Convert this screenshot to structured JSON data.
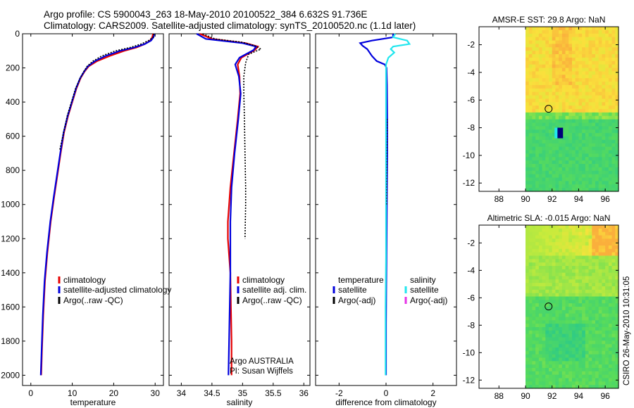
{
  "header": {
    "line1": "Argo profile: CS 5900043_263 18-May-2010 20100522_384 6.632S 91.736E",
    "line2": "Climatology: CARS2009. Satellite-adjusted climatology: synTS_20100520.nc (1.1d later)"
  },
  "colors": {
    "climatology": "#e60000",
    "satellite": "#0000dd",
    "argo": "#000000",
    "sat_salinity": "#22e6ee",
    "argo_adj_salinity": "#e633e6"
  },
  "chart_data": [
    {
      "type": "line",
      "id": "temperature",
      "xlabel": "temperature",
      "ylabel": "",
      "xlim": [
        -2,
        32
      ],
      "ylim": [
        2060,
        0
      ],
      "y_reversed": true,
      "xticks": [
        0,
        10,
        20,
        30
      ],
      "yticks": [
        0,
        200,
        400,
        600,
        800,
        1000,
        1200,
        1400,
        1600,
        1800,
        2000
      ],
      "legend": {
        "position": "lower-right",
        "entries": [
          "climatology",
          "satellite-adjusted climatology",
          "Argo(..raw -QC)"
        ]
      },
      "series": [
        {
          "name": "climatology",
          "color": "#e60000",
          "dash": "",
          "x": [
            29.5,
            29.3,
            28.8,
            27.5,
            25.5,
            22.5,
            19.0,
            16.0,
            14.0,
            13.0,
            12.0,
            11.0,
            10.0,
            9.0,
            8.0,
            7.2,
            6.4,
            5.6,
            4.8,
            4.0,
            3.4,
            3.0,
            2.7,
            2.5
          ],
          "y": [
            0,
            20,
            40,
            60,
            80,
            100,
            130,
            160,
            190,
            220,
            260,
            320,
            400,
            480,
            580,
            700,
            830,
            960,
            1100,
            1280,
            1450,
            1650,
            1850,
            2000
          ]
        },
        {
          "name": "satellite-adjusted climatology",
          "color": "#0000dd",
          "dash": "",
          "x": [
            29.8,
            29.6,
            29.0,
            27.5,
            25.0,
            21.5,
            18.0,
            15.5,
            13.8,
            12.9,
            11.9,
            10.9,
            9.9,
            8.9,
            7.9,
            7.1,
            6.3,
            5.5,
            4.7,
            3.9,
            3.3,
            2.9,
            2.6,
            2.4
          ],
          "y": [
            0,
            20,
            40,
            60,
            80,
            100,
            130,
            160,
            190,
            220,
            260,
            320,
            400,
            480,
            580,
            700,
            830,
            960,
            1100,
            1280,
            1450,
            1650,
            1850,
            2000
          ]
        },
        {
          "name": "Argo(..raw -QC)",
          "color": "#000000",
          "dash": "2,2",
          "x": [
            29.7,
            29.5,
            28.4,
            26.6,
            24.0,
            20.4,
            17.1,
            15.0,
            13.6,
            12.8,
            11.9,
            10.8,
            9.8,
            8.8,
            7.9,
            7.0
          ],
          "y": [
            0,
            20,
            40,
            60,
            80,
            100,
            130,
            160,
            190,
            220,
            260,
            320,
            400,
            480,
            580,
            680
          ]
        }
      ]
    },
    {
      "type": "line",
      "id": "salinity",
      "xlabel": "salinity",
      "xlim": [
        33.8,
        36.1
      ],
      "ylim": [
        2060,
        0
      ],
      "y_reversed": true,
      "xticks": [
        34,
        34.5,
        35,
        35.5,
        36
      ],
      "legend": {
        "position": "lower-right",
        "entries": [
          "climatology",
          "satellite adj. clim.",
          "Argo(..raw -QC)"
        ]
      },
      "annotation": [
        "Argo AUSTRALIA",
        "PI: Susan Wijffels"
      ],
      "series": [
        {
          "name": "climatology",
          "color": "#e60000",
          "dash": "",
          "x": [
            34.3,
            34.5,
            35.05,
            35.25,
            35.2,
            34.98,
            34.92,
            34.95,
            34.96,
            34.92,
            34.86,
            34.8,
            34.76,
            34.76,
            34.8,
            34.81,
            34.82,
            34.82
          ],
          "y": [
            0,
            30,
            55,
            75,
            95,
            140,
            180,
            250,
            350,
            500,
            700,
            900,
            1100,
            1200,
            1400,
            1600,
            1800,
            2000
          ]
        },
        {
          "name": "satellite adj. clim.",
          "color": "#0000dd",
          "dash": "",
          "x": [
            34.25,
            34.4,
            35.0,
            35.22,
            35.18,
            34.95,
            34.88,
            34.94,
            34.97,
            34.93,
            34.87,
            34.82,
            34.8,
            34.8,
            34.8,
            34.79,
            34.78,
            34.77
          ],
          "y": [
            0,
            30,
            55,
            75,
            95,
            140,
            180,
            250,
            350,
            500,
            700,
            900,
            1100,
            1200,
            1400,
            1600,
            1800,
            2000
          ]
        },
        {
          "name": "Argo(..raw -QC)",
          "color": "#000000",
          "dash": "2,2",
          "x": [
            34.35,
            34.55,
            35.0,
            35.2,
            35.3,
            35.1,
            35.05,
            35.02,
            35.02,
            35.03,
            35.04,
            35.05,
            35.05,
            35.04
          ],
          "y": [
            0,
            30,
            50,
            70,
            90,
            120,
            170,
            250,
            350,
            500,
            700,
            900,
            1000,
            1200
          ]
        }
      ]
    },
    {
      "type": "line",
      "id": "difference",
      "xlabel": "difference from climatology",
      "xlim": [
        -3.0,
        3.0
      ],
      "ylim": [
        2060,
        0
      ],
      "y_reversed": true,
      "xticks": [
        -2,
        0,
        2
      ],
      "legend": {
        "position": "lower",
        "columns": [
          {
            "heading": "temperature",
            "entries": [
              "satellite",
              "Argo(-adj)"
            ]
          },
          {
            "heading": "salinity",
            "entries": [
              "satellite",
              "Argo(-adj)"
            ]
          }
        ]
      },
      "series": [
        {
          "name": "temperature satellite",
          "color": "#0000dd",
          "dash": "",
          "x": [
            0.3,
            0.3,
            -0.6,
            -1.1,
            -1.0,
            -0.8,
            -0.6,
            -0.4,
            -0.05,
            0.02,
            0.04,
            0.05,
            0.05,
            0.04,
            0.03,
            0.02,
            0.01,
            0.0,
            0.0,
            0.0
          ],
          "y": [
            0,
            20,
            40,
            55,
            70,
            90,
            130,
            160,
            180,
            200,
            300,
            500,
            700,
            900,
            1100,
            1300,
            1500,
            1700,
            1900,
            2000
          ]
        },
        {
          "name": "salinity satellite",
          "color": "#22e6ee",
          "dash": "",
          "x": [
            0.4,
            0.3,
            0.9,
            1.0,
            0.3,
            0.2,
            0.35,
            0.1,
            0.0,
            0.0,
            0.0,
            0.0,
            0.0,
            0.0,
            -0.02,
            -0.02,
            -0.02
          ],
          "y": [
            0,
            20,
            40,
            60,
            75,
            90,
            110,
            140,
            180,
            250,
            400,
            700,
            1000,
            1300,
            1600,
            1800,
            2000
          ]
        },
        {
          "name": "temperature Argo(-adj)",
          "color": "#000000",
          "dash": "1,3",
          "x": [
            0.05,
            0.05,
            0.04,
            0.04,
            0.03,
            0.03
          ],
          "y": [
            500,
            600,
            700,
            800,
            900,
            1000
          ]
        }
      ]
    },
    {
      "type": "heatmap",
      "id": "sst",
      "title": "AMSR-E SST: 29.8 Argo: NaN",
      "xlim": [
        86.5,
        97
      ],
      "ylim": [
        -12.6,
        -0.7
      ],
      "xticks": [
        88,
        90,
        92,
        94,
        96
      ],
      "yticks": [
        -2,
        -4,
        -6,
        -8,
        -10,
        -12
      ],
      "data_xrange": [
        90,
        97
      ],
      "float_position": [
        91.736,
        -6.632
      ]
    },
    {
      "type": "heatmap",
      "id": "sla",
      "title": "Altimetric SLA: -0.015 Argo: NaN",
      "xlim": [
        86.5,
        97
      ],
      "ylim": [
        -12.6,
        -0.7
      ],
      "xticks": [
        88,
        90,
        92,
        94,
        96
      ],
      "yticks": [
        -2,
        -4,
        -6,
        -8,
        -10,
        -12
      ],
      "data_xrange": [
        90,
        97
      ],
      "float_position": [
        91.736,
        -6.632
      ]
    }
  ],
  "footer": {
    "credit": "CSIRO 26-May-2010 10:31:05"
  }
}
